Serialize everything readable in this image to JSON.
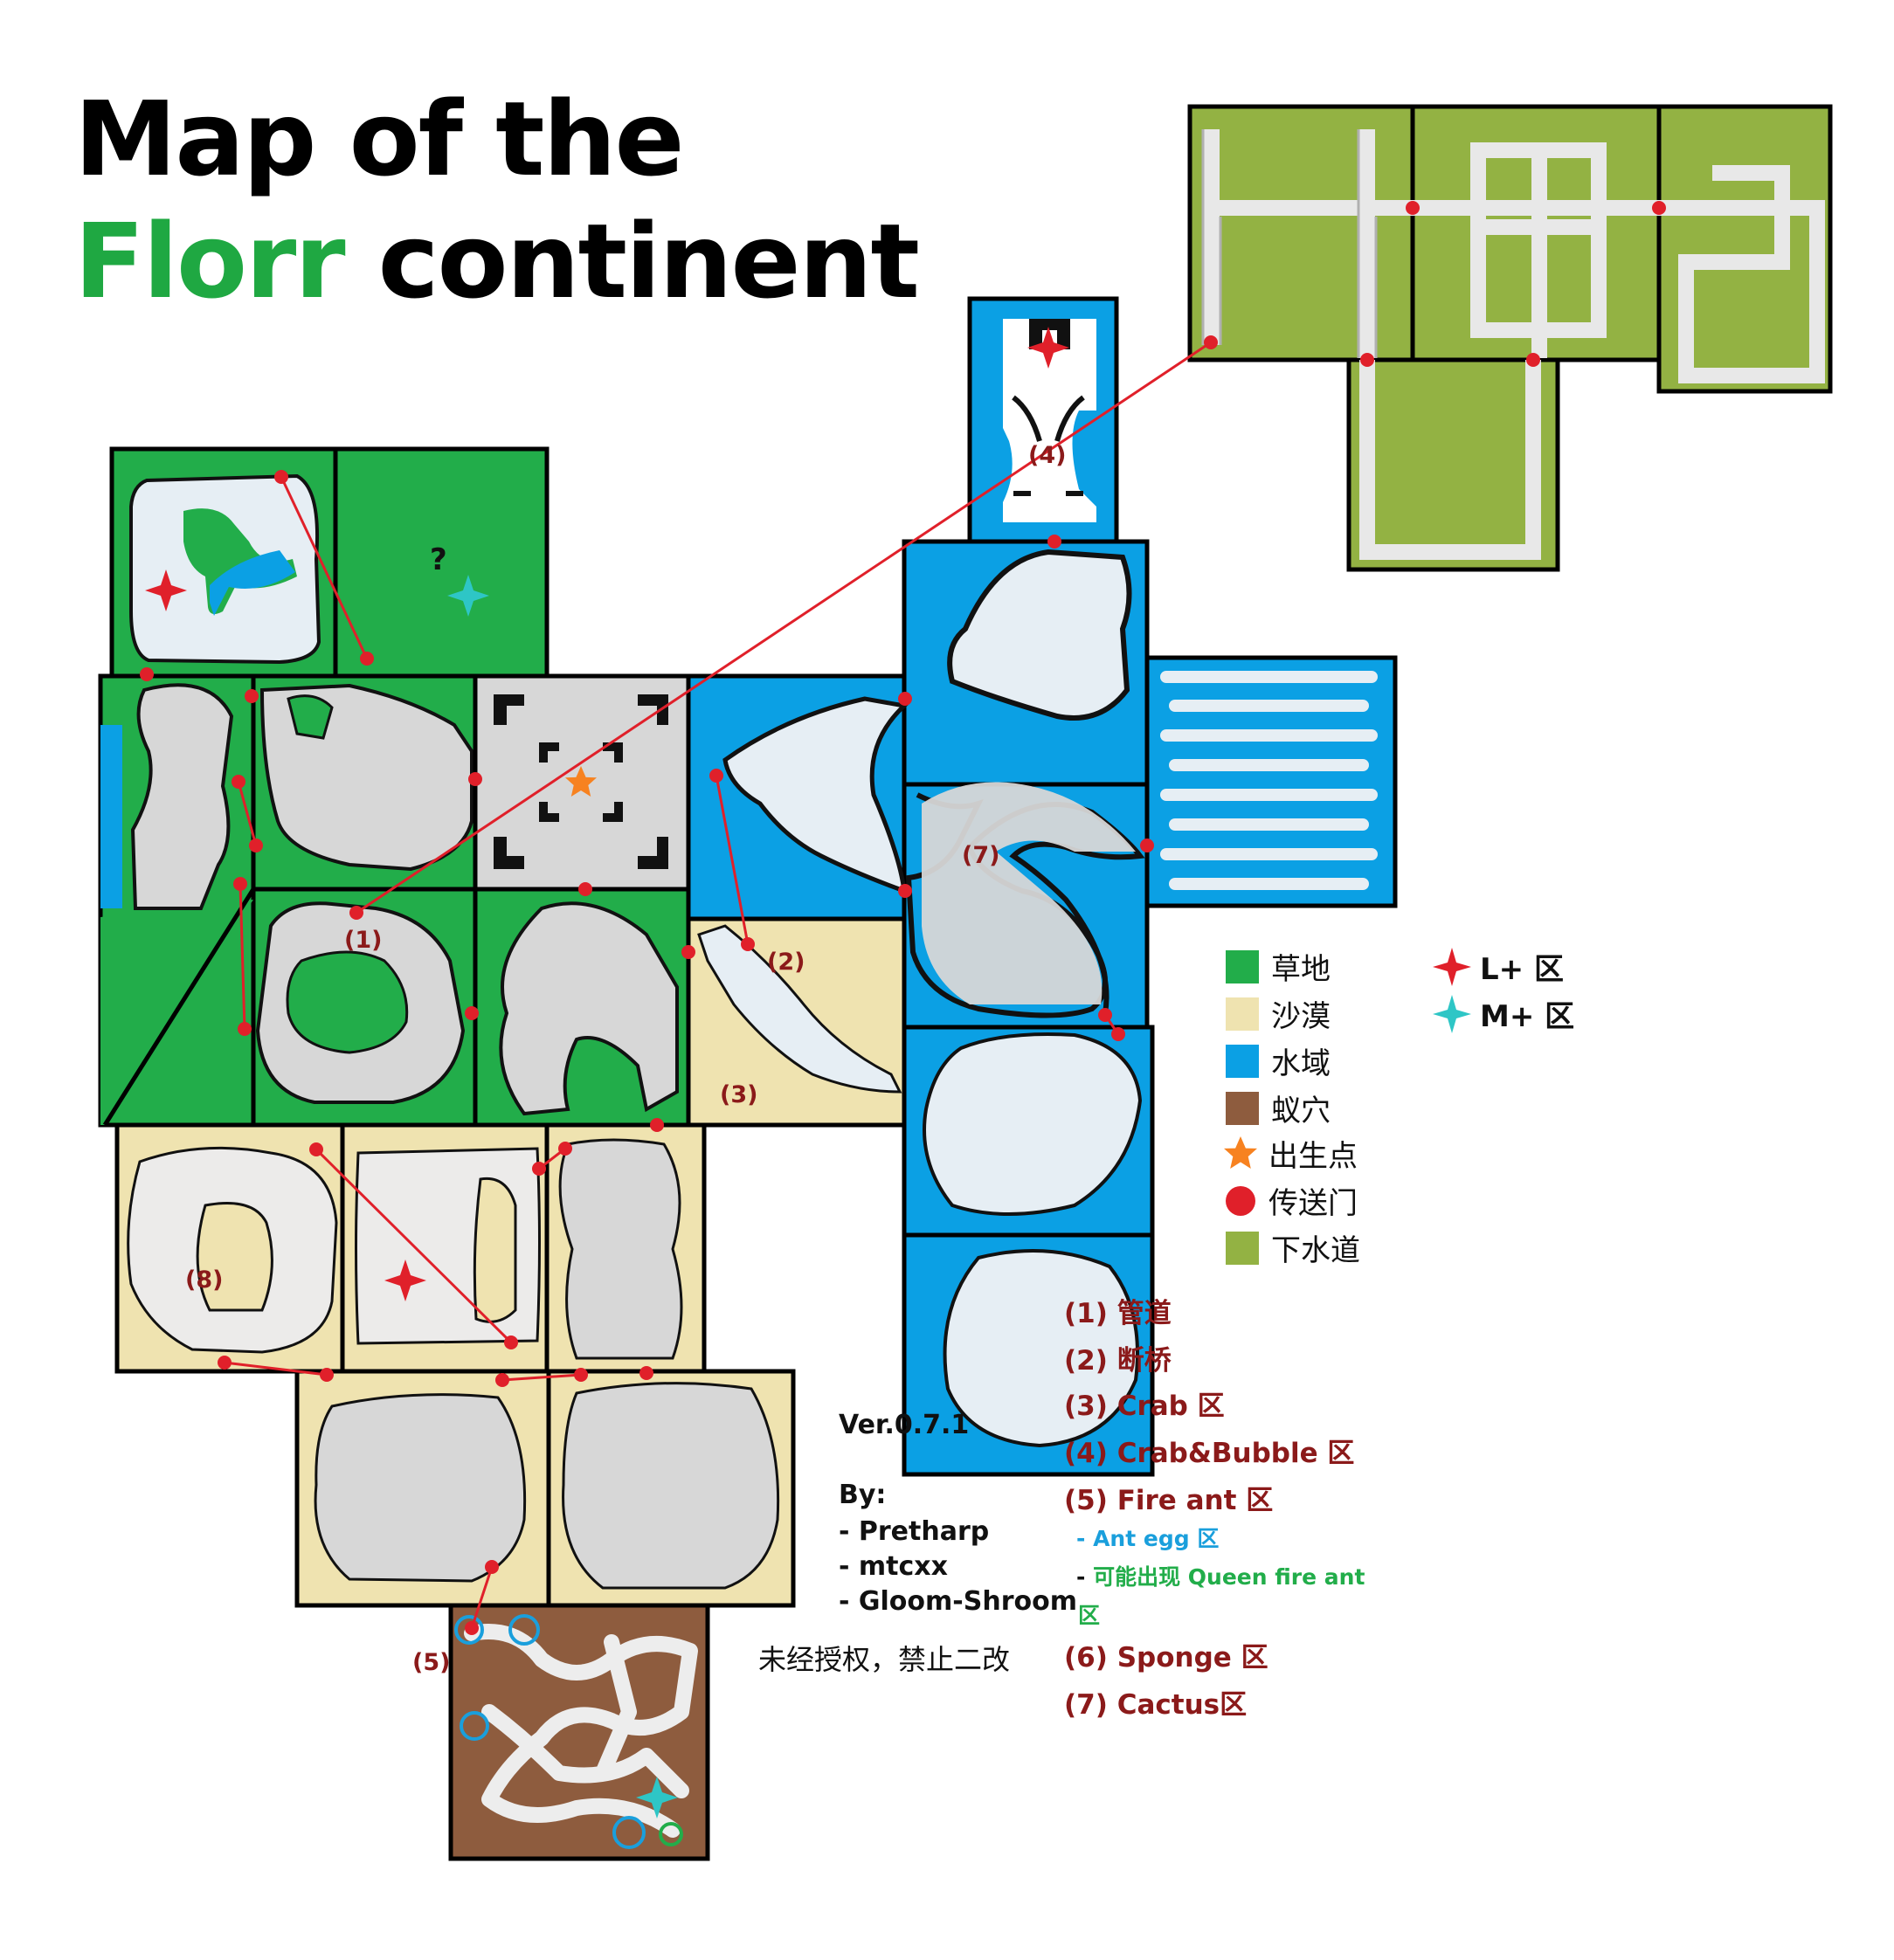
{
  "title": {
    "line1": "Map of the",
    "line2_highlight": "Florr",
    "line2_rest": " continent"
  },
  "colors": {
    "grass": "#22ad4a",
    "desert": "#efe3b0",
    "ocean": "#0ba0e4",
    "ant_hell": "#8e5c3e",
    "sewers": "#93b243",
    "spawn": "#f78220",
    "portal": "#e0202a",
    "land": "#d7d7d7",
    "ice": "#e6eef4",
    "cyan_star": "#2ec6c6",
    "zone_text": "#8b1a1a",
    "ant_egg_text": "#1a9fdc",
    "queen_text": "#22ad4a"
  },
  "legend": {
    "grass": "草地",
    "desert": "沙漠",
    "water": "水域",
    "ant_nest": "蚁穴",
    "spawn": "出生点",
    "portal": "传送门",
    "sewers": "下水道",
    "l_zone": "L+ 区",
    "m_zone": "M+ 区"
  },
  "zones": {
    "z1": "(1) 管道",
    "z2": "(2) 断桥",
    "z3": "(3) Crab 区",
    "z4": "(4) Crab&Bubble 区",
    "z5": "(5) Fire ant 区",
    "z5a": "- Ant egg 区",
    "z5b_dash": "- ",
    "z5b": "可能出现 Queen fire ant",
    "z5b_tail": "区",
    "z6": "(6) Sponge 区",
    "z7": "(7) Cactus区"
  },
  "credits": {
    "version": "Ver.0.7.1",
    "by": "By:",
    "authors": [
      "- Pretharp",
      "- mtcxx",
      "- Gloom-Shroom"
    ]
  },
  "notice": "未经授权，禁止二改",
  "map_labels": {
    "l1": "(1)",
    "l2": "(2)",
    "l3": "(3)",
    "l4": "(4)",
    "l5": "(5)",
    "l7": "(7)",
    "l8": "(8)",
    "unknown": "?"
  },
  "icons": [
    "red-star-icon",
    "cyan-star-icon",
    "orange-star-icon",
    "portal-dot-icon",
    "ant-egg-circle-icon",
    "queen-circle-icon"
  ]
}
